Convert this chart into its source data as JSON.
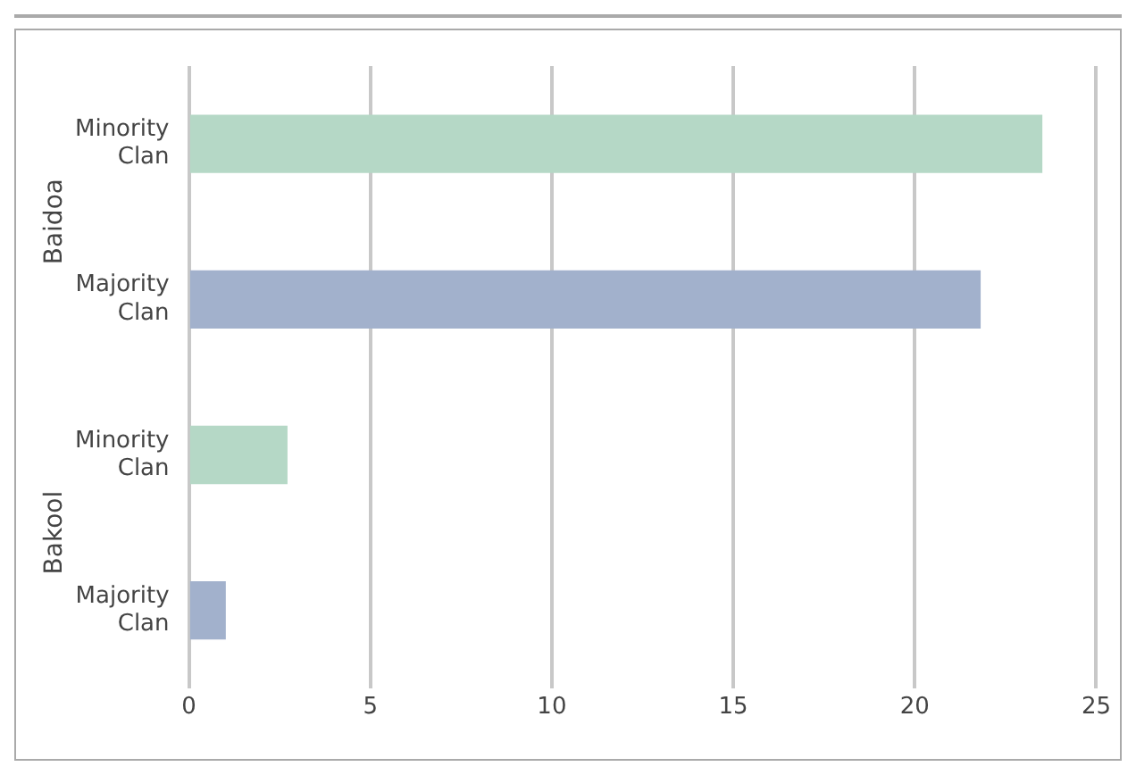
{
  "chart_data": {
    "type": "bar",
    "orientation": "horizontal",
    "categories": [
      "Minority Clan",
      "Majority Clan",
      "Minority Clan",
      "Majority Clan"
    ],
    "values": [
      23.5,
      21.8,
      2.7,
      1.0
    ],
    "colors": [
      "#b5d8c6",
      "#a2b1cc",
      "#b5d8c6",
      "#a2b1cc"
    ],
    "xlim": [
      0,
      25
    ],
    "xticks": [
      0,
      5,
      10,
      15,
      20,
      25
    ],
    "grid": "x",
    "legend": false,
    "annotations": [
      "Baidoa",
      "Bakool"
    ]
  }
}
